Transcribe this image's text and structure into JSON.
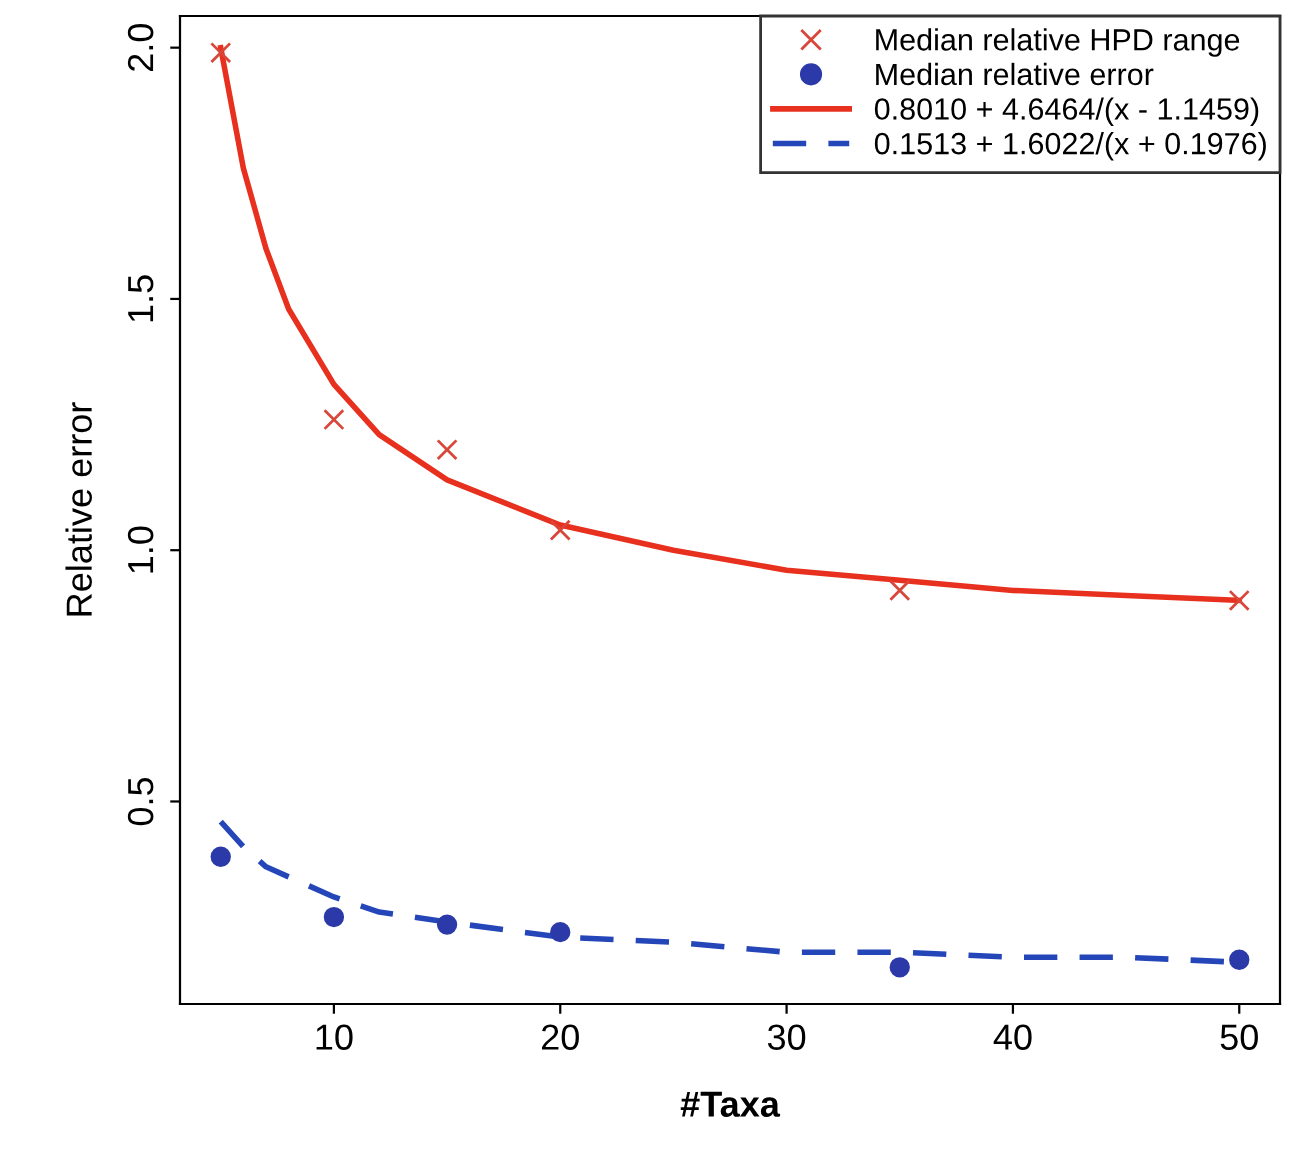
{
  "chart_data": {
    "type": "scatter",
    "xlabel": "#Taxa",
    "ylabel": "Relative error",
    "xlim": [
      3.2,
      51.8
    ],
    "ylim": [
      0.097,
      2.063
    ],
    "xticks": [
      10,
      20,
      30,
      40,
      50
    ],
    "yticks": [
      0.5,
      {
        "value": 1.0,
        "label": "1.0"
      },
      1.5,
      {
        "value": 2.0,
        "label": "2.0"
      }
    ],
    "grid": false,
    "legend": "top right",
    "series": [
      {
        "name": "Median relative HPD range",
        "marker": "cross",
        "color": "#d9463a",
        "x": [
          5,
          10,
          15,
          20,
          35,
          50
        ],
        "values": [
          1.99,
          1.26,
          1.2,
          1.04,
          0.92,
          0.9
        ]
      },
      {
        "name": "Median relative error",
        "marker": "circle",
        "color": "#2b3aa8",
        "x": [
          5,
          10,
          15,
          20,
          35,
          50
        ],
        "values": [
          0.39,
          0.27,
          0.255,
          0.24,
          0.17,
          0.185
        ]
      },
      {
        "name": "0.8010 + 4.6464/(x - 1.1459)",
        "type": "line",
        "marker": "none",
        "line_style": "solid",
        "color": "#e8301e",
        "x": [
          5,
          6,
          7,
          8,
          10,
          12,
          15,
          20,
          25,
          30,
          35,
          40,
          45,
          50
        ],
        "values": [
          2.0,
          1.76,
          1.6,
          1.48,
          1.33,
          1.23,
          1.14,
          1.05,
          1.0,
          0.96,
          0.94,
          0.92,
          0.91,
          0.9
        ]
      },
      {
        "name": "0.1513 + 1.6022/(x + 0.1976)",
        "type": "line",
        "marker": "none",
        "line_style": "dashed",
        "color": "#2446b8",
        "x": [
          5,
          6,
          7,
          8,
          10,
          12,
          15,
          20,
          25,
          30,
          35,
          40,
          45,
          50
        ],
        "values": [
          0.46,
          0.41,
          0.37,
          0.35,
          0.31,
          0.28,
          0.26,
          0.23,
          0.22,
          0.2,
          0.2,
          0.19,
          0.19,
          0.18
        ]
      }
    ]
  }
}
